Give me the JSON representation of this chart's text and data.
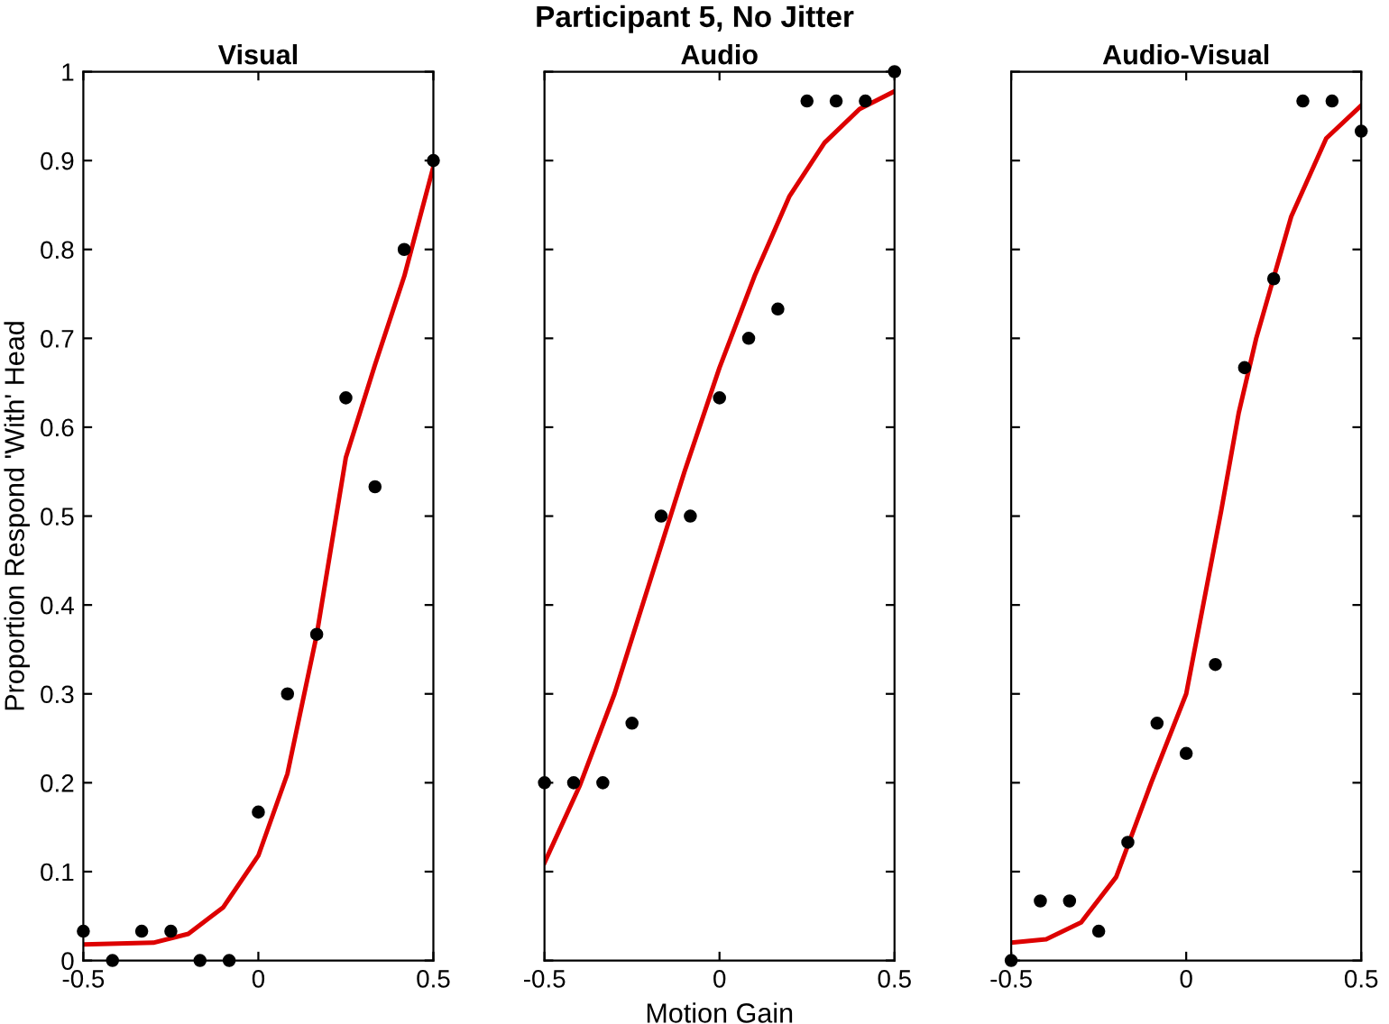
{
  "chart_data": [
    {
      "type": "scatter",
      "title": "Visual",
      "ylabel": "Proportion Respond 'With' Head",
      "xlim": [
        -0.5,
        0.5
      ],
      "ylim": [
        0,
        1
      ],
      "xticks": [
        -0.5,
        0,
        0.5
      ],
      "yticks": [
        0,
        0.1,
        0.2,
        0.3,
        0.4,
        0.5,
        0.6,
        0.7,
        0.8,
        0.9,
        1
      ],
      "grid": false,
      "legend": false,
      "series": [
        {
          "marker": "circle",
          "color": "#000000",
          "x": [
            -0.5,
            -0.4167,
            -0.3333,
            -0.25,
            -0.1667,
            -0.0833,
            0,
            0.0833,
            0.1667,
            0.25,
            0.3333,
            0.4167,
            0.5
          ],
          "values": [
            0.033,
            0,
            0.033,
            0.033,
            0,
            0,
            0.167,
            0.3,
            0.367,
            0.633,
            0.533,
            0.8,
            0.9
          ]
        },
        {
          "type": "line",
          "color": "#dd0000",
          "x": [
            -0.5,
            -0.3,
            -0.2,
            -0.1,
            0,
            0.083,
            0.167,
            0.25,
            0.333,
            0.417,
            0.5
          ],
          "values": [
            0.018,
            0.02,
            0.03,
            0.06,
            0.118,
            0.21,
            0.367,
            0.566,
            0.67,
            0.77,
            0.893
          ]
        }
      ]
    },
    {
      "type": "scatter",
      "title": "Audio",
      "xlabel": "Motion Gain",
      "annotations": [
        "Participant 5, No Jitter"
      ],
      "xlim": [
        -0.5,
        0.5
      ],
      "ylim": [
        0,
        1
      ],
      "xticks": [
        -0.5,
        0,
        0.5
      ],
      "yticks": [
        0,
        0.1,
        0.2,
        0.3,
        0.4,
        0.5,
        0.6,
        0.7,
        0.8,
        0.9,
        1
      ],
      "tick_labels": "x",
      "grid": false,
      "legend": false,
      "series": [
        {
          "marker": "circle",
          "color": "#000000",
          "x": [
            -0.5,
            -0.4167,
            -0.3333,
            -0.25,
            -0.1667,
            -0.0833,
            0,
            0.0833,
            0.1667,
            0.25,
            0.3333,
            0.4167,
            0.5
          ],
          "values": [
            0.2,
            0.2,
            0.2,
            0.267,
            0.5,
            0.5,
            0.633,
            0.7,
            0.733,
            0.967,
            0.967,
            0.967,
            1.0
          ]
        },
        {
          "type": "line",
          "color": "#dd0000",
          "x": [
            -0.5,
            -0.4,
            -0.3,
            -0.2,
            -0.1,
            0,
            0.1,
            0.2,
            0.3,
            0.4,
            0.5
          ],
          "values": [
            0.11,
            0.196,
            0.3,
            0.425,
            0.55,
            0.667,
            0.77,
            0.86,
            0.92,
            0.958,
            0.978
          ]
        }
      ]
    },
    {
      "type": "scatter",
      "title": "Audio-Visual",
      "xlim": [
        -0.5,
        0.5
      ],
      "ylim": [
        0,
        1
      ],
      "xticks": [
        -0.5,
        0,
        0.5
      ],
      "yticks": [
        0,
        0.1,
        0.2,
        0.3,
        0.4,
        0.5,
        0.6,
        0.7,
        0.8,
        0.9,
        1
      ],
      "tick_labels": "x",
      "grid": false,
      "legend": false,
      "series": [
        {
          "marker": "circle",
          "color": "#000000",
          "x": [
            -0.5,
            -0.4167,
            -0.3333,
            -0.25,
            -0.1667,
            -0.0833,
            0,
            0.0833,
            0.1667,
            0.25,
            0.3333,
            0.4167,
            0.5
          ],
          "values": [
            0,
            0.067,
            0.067,
            0.033,
            0.133,
            0.267,
            0.233,
            0.333,
            0.667,
            0.767,
            0.967,
            0.967,
            0.933
          ]
        },
        {
          "type": "line",
          "color": "#dd0000",
          "x": [
            -0.5,
            -0.4,
            -0.3,
            -0.2,
            -0.1,
            0,
            0.1,
            0.15,
            0.2,
            0.3,
            0.4,
            0.5
          ],
          "values": [
            0.02,
            0.024,
            0.043,
            0.094,
            0.2,
            0.3,
            0.506,
            0.616,
            0.7,
            0.837,
            0.925,
            0.962
          ]
        }
      ]
    }
  ]
}
